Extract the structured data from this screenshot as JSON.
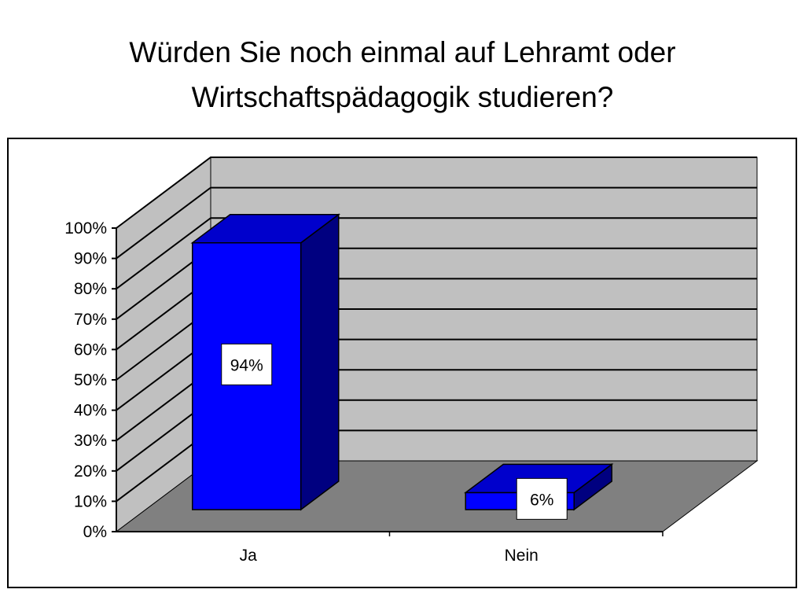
{
  "slide": {
    "title_line1": "Würden Sie noch einmal auf Lehramt oder",
    "title_line2": "Wirtschaftspädagogik studieren?"
  },
  "chart_data": {
    "type": "bar",
    "style": "3d-column",
    "categories": [
      "Ja",
      "Nein"
    ],
    "values": [
      94,
      6
    ],
    "data_labels": [
      "94%",
      "6%"
    ],
    "yticks": [
      "0%",
      "10%",
      "20%",
      "30%",
      "40%",
      "50%",
      "60%",
      "70%",
      "80%",
      "90%",
      "100%"
    ],
    "ylim": [
      0,
      100
    ],
    "grid": true,
    "colors": {
      "bar_front": "#0000FF",
      "bar_top": "#0000CC",
      "bar_side": "#000080",
      "walls": "#C0C0C0",
      "floor": "#808080"
    }
  }
}
